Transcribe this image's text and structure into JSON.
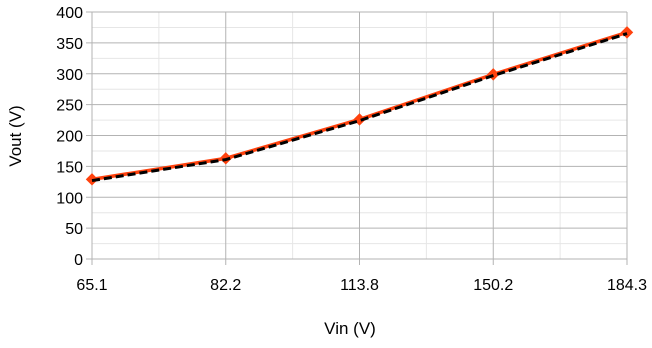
{
  "chart_data": {
    "type": "line",
    "xlabel": "Vin (V)",
    "ylabel": "Vout (V)",
    "x": [
      "65.1",
      "82.2",
      "113.8",
      "150.2",
      "184.3"
    ],
    "ylim": [
      0,
      400
    ],
    "yticks": [
      0,
      50,
      100,
      150,
      200,
      250,
      300,
      350,
      400
    ],
    "grid": true,
    "series": [
      {
        "values": [
          129,
          163,
          226,
          299,
          367
        ],
        "color": "#ff420e",
        "marker": "diamond"
      },
      {
        "values": [
          127,
          161,
          224,
          297,
          365
        ],
        "color": "#000000",
        "dashed": true
      }
    ]
  }
}
